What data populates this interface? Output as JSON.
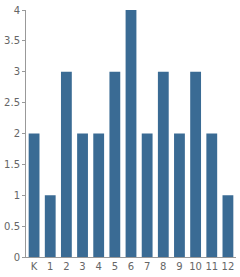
{
  "chart_data": {
    "type": "bar",
    "categories": [
      "K",
      "1",
      "2",
      "3",
      "4",
      "5",
      "6",
      "7",
      "8",
      "9",
      "10",
      "11",
      "12"
    ],
    "values": [
      2,
      1,
      3,
      2,
      2,
      3,
      4,
      2,
      3,
      2,
      3,
      2,
      1
    ],
    "color": "#3a6b94",
    "ylim": [
      0,
      4
    ],
    "yticks": [
      0,
      0.5,
      1,
      1.5,
      2,
      2.5,
      3,
      3.5,
      4
    ],
    "grid": false
  }
}
